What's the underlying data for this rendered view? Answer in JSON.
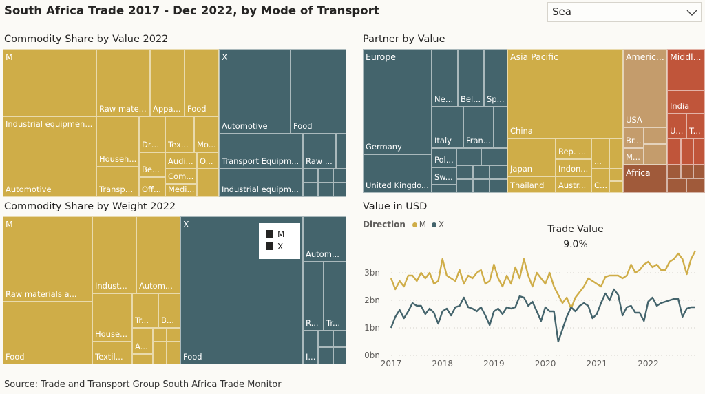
{
  "header": {
    "title": "South Africa Trade 2017 - Dec 2022, by Mode of Transport"
  },
  "slicer": {
    "value": "Sea",
    "icon": "chevron-down-icon"
  },
  "colors": {
    "M": "#cfad48",
    "X": "#44646c",
    "americas": "#c49c6c",
    "middle_east": "#c0553a",
    "africa": "#a05a3a"
  },
  "footer": {
    "source": "Source: Trade and Transport Group South Africa Trade Monitor"
  },
  "commodity_value": {
    "title": "Commodity Share by Value 2022",
    "M_label": "M",
    "X_label": "X",
    "M_items": [
      "Industrial equipmen...",
      "Automotive",
      "Raw mate...",
      "Appa...",
      "Food",
      "Househ...",
      "Transpo...",
      "Dru...",
      "Tex...",
      "Mo...",
      "Be...",
      "Audi...",
      "O...",
      "Com...",
      "Off...",
      "Medi..."
    ],
    "X_items": [
      "Automotive",
      "Food",
      "Transport Equipm...",
      "Raw ...",
      "Industrial equipm..."
    ]
  },
  "commodity_weight": {
    "title": "Commodity Share by Weight 2022",
    "M_label": "M",
    "X_label": "X",
    "M_items": [
      "Raw materials a...",
      "Food",
      "Indust...",
      "Autom...",
      "House...",
      "Textil...",
      "Tr...",
      "B...",
      "A..."
    ],
    "X_items": [
      "Food",
      "Autom...",
      "R...",
      "Tr...",
      "I..."
    ],
    "legend": [
      "M",
      "X"
    ]
  },
  "partner": {
    "title": "Partner by Value",
    "regions": [
      "Europe",
      "Asia Pacific",
      "Americ...",
      "Middl...",
      "Africa"
    ],
    "europe_items": [
      "Germany",
      "United Kingdo...",
      "Net...",
      "Bel...",
      "Sp...",
      "Italy",
      "Fran...",
      "Pol...",
      "Sw..."
    ],
    "asia_items": [
      "China",
      "Japan",
      "Thailand",
      "Rep. ...",
      "Indon...",
      "Austr...",
      "...",
      "C..."
    ],
    "americas_items": [
      "USA",
      "Br...",
      "M..."
    ],
    "middle_items": [
      "India",
      "U...",
      "T..."
    ]
  },
  "line": {
    "title": "Value in USD",
    "legend_title": "Direction",
    "annotation_title": "Trade Value",
    "annotation_value": "9.0%"
  },
  "chart_data": {
    "type": "line",
    "title": "Value in USD",
    "xlabel": "",
    "ylabel": "",
    "x_ticks": [
      "2017",
      "2018",
      "2019",
      "2020",
      "2021",
      "2022"
    ],
    "y_ticks": [
      "0bn",
      "1bn",
      "2bn",
      "3bn"
    ],
    "ylim": [
      0,
      3.9
    ],
    "legend_placement": "top-left",
    "x": [
      "2017-01",
      "2017-02",
      "2017-03",
      "2017-04",
      "2017-05",
      "2017-06",
      "2017-07",
      "2017-08",
      "2017-09",
      "2017-10",
      "2017-11",
      "2017-12",
      "2018-01",
      "2018-02",
      "2018-03",
      "2018-04",
      "2018-05",
      "2018-06",
      "2018-07",
      "2018-08",
      "2018-09",
      "2018-10",
      "2018-11",
      "2018-12",
      "2019-01",
      "2019-02",
      "2019-03",
      "2019-04",
      "2019-05",
      "2019-06",
      "2019-07",
      "2019-08",
      "2019-09",
      "2019-10",
      "2019-11",
      "2019-12",
      "2020-01",
      "2020-02",
      "2020-03",
      "2020-04",
      "2020-05",
      "2020-06",
      "2020-07",
      "2020-08",
      "2020-09",
      "2020-10",
      "2020-11",
      "2020-12",
      "2021-01",
      "2021-02",
      "2021-03",
      "2021-04",
      "2021-05",
      "2021-06",
      "2021-07",
      "2021-08",
      "2021-09",
      "2021-10",
      "2021-11",
      "2021-12",
      "2022-01",
      "2022-02",
      "2022-03",
      "2022-04",
      "2022-05",
      "2022-06",
      "2022-07",
      "2022-08",
      "2022-09",
      "2022-10",
      "2022-11",
      "2022-12"
    ],
    "series": [
      {
        "name": "M",
        "values": [
          2.8,
          2.4,
          2.7,
          2.5,
          2.9,
          2.9,
          2.7,
          3.0,
          2.8,
          3.0,
          2.6,
          2.7,
          3.5,
          2.9,
          2.8,
          2.7,
          3.1,
          2.6,
          2.9,
          2.8,
          3.0,
          3.1,
          2.6,
          2.7,
          3.3,
          2.8,
          2.5,
          2.9,
          2.6,
          3.2,
          2.8,
          3.5,
          2.9,
          2.5,
          3.0,
          2.8,
          2.6,
          3.0,
          2.5,
          2.2,
          1.9,
          2.1,
          1.7,
          2.1,
          2.3,
          2.5,
          2.8,
          2.7,
          2.6,
          2.5,
          2.85,
          2.9,
          2.9,
          2.9,
          2.8,
          2.9,
          3.3,
          3.0,
          3.1,
          3.3,
          3.4,
          3.2,
          3.3,
          3.1,
          3.1,
          3.4,
          3.5,
          3.7,
          3.5,
          2.95,
          3.5,
          3.8
        ]
      },
      {
        "name": "X",
        "values": [
          1.0,
          1.4,
          1.65,
          1.35,
          1.6,
          1.9,
          1.8,
          1.8,
          1.5,
          1.7,
          1.55,
          1.15,
          1.6,
          1.7,
          1.45,
          1.75,
          1.8,
          2.1,
          1.75,
          1.7,
          1.6,
          1.75,
          1.45,
          1.1,
          1.6,
          1.7,
          1.5,
          1.75,
          1.7,
          1.75,
          2.15,
          2.1,
          1.8,
          1.95,
          1.6,
          1.25,
          1.75,
          1.6,
          1.6,
          0.5,
          0.95,
          1.4,
          1.75,
          1.6,
          1.8,
          1.9,
          1.8,
          1.35,
          1.5,
          1.9,
          2.25,
          2.0,
          2.4,
          2.2,
          1.45,
          1.75,
          1.8,
          1.55,
          1.55,
          1.25,
          1.95,
          2.1,
          1.8,
          1.9,
          1.95,
          2.0,
          2.05,
          2.05,
          1.4,
          1.7,
          1.75,
          1.75
        ]
      }
    ]
  }
}
